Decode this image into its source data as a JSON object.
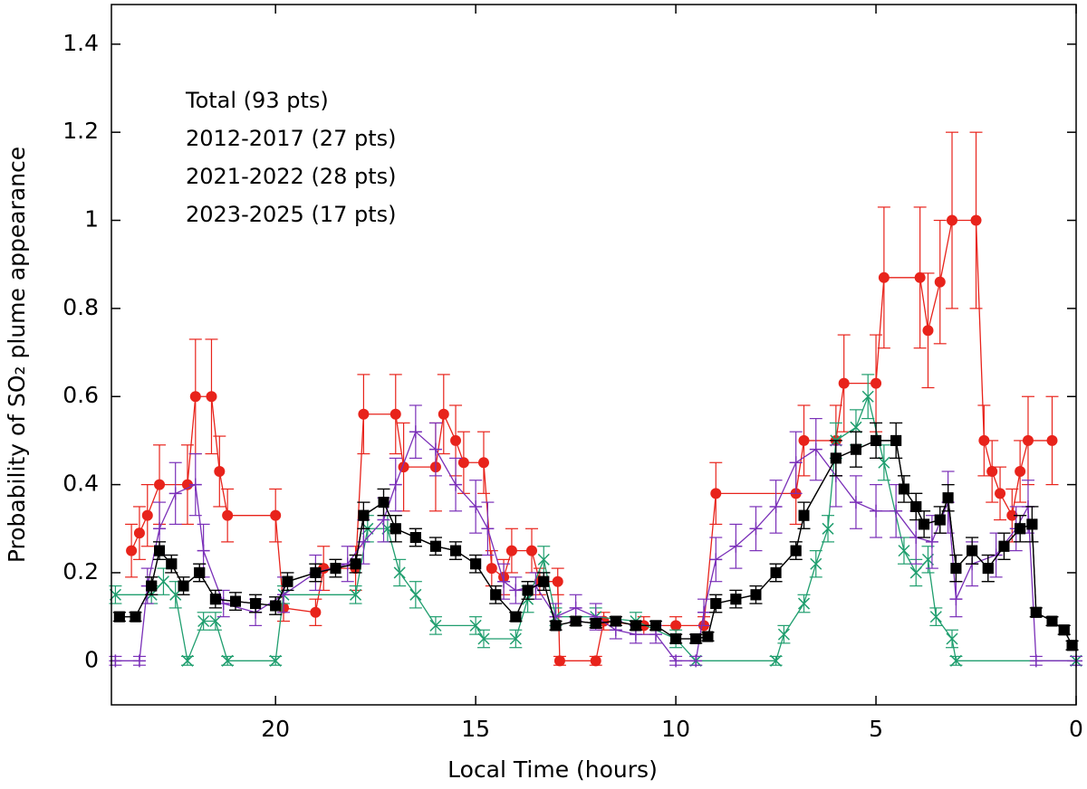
{
  "chart_data": {
    "type": "line",
    "xlabel": "Local Time (hours)",
    "ylabel": "Probability of SO₂ plume appearance",
    "xlim": [
      24.1,
      0
    ],
    "xticks": [
      20,
      15,
      10,
      5,
      0
    ],
    "ylim": [
      -0.1,
      1.49
    ],
    "yticks": [
      0,
      0.2,
      0.4,
      0.6,
      0.8,
      1,
      1.2,
      1.4
    ],
    "legend": "upper left",
    "series": [
      {
        "name": "Total (93 pts)",
        "color": "#000000",
        "marker": "square",
        "x": [
          23.9,
          23.5,
          23.1,
          22.9,
          22.6,
          22.3,
          21.9,
          21.5,
          21,
          20.5,
          20,
          19.7,
          19,
          18.5,
          18,
          17.8,
          17.3,
          17,
          16.5,
          16,
          15.5,
          15,
          14.5,
          14,
          13.7,
          13.3,
          13,
          12.5,
          12,
          11.5,
          11,
          10.5,
          10,
          9.5,
          9.2,
          9,
          8.5,
          8,
          7.5,
          7,
          6.8,
          6,
          5.5,
          5,
          4.5,
          4.3,
          4,
          3.8,
          3.4,
          3.2,
          3,
          2.6,
          2.2,
          1.8,
          1.4,
          1.1,
          1,
          0.6,
          0.3,
          0.1
        ],
        "values": [
          0.1,
          0.1,
          0.17,
          0.25,
          0.22,
          0.17,
          0.2,
          0.14,
          0.135,
          0.13,
          0.125,
          0.18,
          0.2,
          0.21,
          0.22,
          0.33,
          0.36,
          0.3,
          0.28,
          0.26,
          0.25,
          0.22,
          0.15,
          0.1,
          0.16,
          0.18,
          0.08,
          0.09,
          0.085,
          0.09,
          0.08,
          0.08,
          0.05,
          0.05,
          0.055,
          0.13,
          0.14,
          0.15,
          0.2,
          0.25,
          0.33,
          0.46,
          0.48,
          0.5,
          0.5,
          0.39,
          0.35,
          0.31,
          0.32,
          0.37,
          0.21,
          0.25,
          0.21,
          0.26,
          0.3,
          0.31,
          0.11,
          0.09,
          0.07,
          0.035
        ],
        "errors": [
          0.01,
          0.01,
          0.02,
          0.02,
          0.02,
          0.02,
          0.02,
          0.02,
          0.02,
          0.02,
          0.02,
          0.02,
          0.02,
          0.02,
          0.02,
          0.03,
          0.03,
          0.03,
          0.02,
          0.02,
          0.02,
          0.02,
          0.02,
          0.01,
          0.02,
          0.02,
          0.01,
          0.01,
          0.01,
          0.01,
          0.01,
          0.01,
          0.01,
          0.01,
          0.01,
          0.02,
          0.02,
          0.02,
          0.02,
          0.02,
          0.03,
          0.04,
          0.04,
          0.04,
          0.04,
          0.03,
          0.03,
          0.03,
          0.03,
          0.03,
          0.03,
          0.03,
          0.03,
          0.03,
          0.03,
          0.04,
          0.01,
          0.01,
          0.01,
          0.01
        ]
      },
      {
        "name": "2012-2017 (27 pts)",
        "color": "#7a2fb8",
        "marker": "plus",
        "x": [
          24,
          23.4,
          23.2,
          22.9,
          22.5,
          22,
          21.8,
          21.3,
          20.5,
          19.8,
          19,
          18.2,
          17.8,
          17.3,
          17,
          16.5,
          16,
          15.5,
          15,
          14.7,
          14.3,
          14,
          13.5,
          13,
          12.5,
          12,
          11.5,
          11,
          10.5,
          10,
          9.5,
          9.3,
          9,
          8.5,
          8,
          7.5,
          7,
          6.5,
          6,
          5.5,
          5,
          4.5,
          4,
          3.6,
          3.2,
          3,
          2.6,
          2,
          1.5,
          1.2,
          1,
          0
        ],
        "values": [
          0,
          0,
          0.17,
          0.3,
          0.38,
          0.4,
          0.25,
          0.13,
          0.11,
          0.15,
          0.2,
          0.22,
          0.27,
          0.32,
          0.4,
          0.52,
          0.48,
          0.4,
          0.35,
          0.3,
          0.18,
          0.16,
          0.17,
          0.1,
          0.12,
          0.1,
          0.07,
          0.06,
          0.06,
          0,
          0,
          0.11,
          0.23,
          0.26,
          0.3,
          0.35,
          0.45,
          0.48,
          0.42,
          0.36,
          0.34,
          0.34,
          0.28,
          0.27,
          0.36,
          0.14,
          0.22,
          0.24,
          0.3,
          0.35,
          0,
          0
        ],
        "errors": [
          0.01,
          0.01,
          0.04,
          0.06,
          0.07,
          0.07,
          0.06,
          0.03,
          0.03,
          0.04,
          0.04,
          0.04,
          0.05,
          0.05,
          0.06,
          0.06,
          0.06,
          0.06,
          0.06,
          0.06,
          0.04,
          0.03,
          0.03,
          0.03,
          0.03,
          0.03,
          0.02,
          0.02,
          0.02,
          0.01,
          0.01,
          0.03,
          0.05,
          0.05,
          0.05,
          0.06,
          0.07,
          0.07,
          0.07,
          0.06,
          0.06,
          0.06,
          0.06,
          0.06,
          0.07,
          0.04,
          0.05,
          0.05,
          0.05,
          0.06,
          0.01,
          0.01
        ]
      },
      {
        "name": "2021-2022 (28 pts)",
        "color": "#1f9e6e",
        "marker": "cross",
        "x": [
          24,
          23.1,
          22.8,
          22.5,
          22.2,
          21.8,
          21.5,
          21.2,
          20,
          19.8,
          18,
          17.7,
          17.2,
          16.9,
          16.5,
          16,
          15,
          14.8,
          14,
          13.7,
          13.3,
          13,
          12,
          11,
          10,
          9.5,
          7.5,
          7.3,
          6.8,
          6.5,
          6.2,
          6,
          5.5,
          5.2,
          4.8,
          4.3,
          4,
          3.7,
          3.5,
          3.1,
          3,
          0
        ],
        "values": [
          0.15,
          0.15,
          0.18,
          0.15,
          0,
          0.09,
          0.09,
          0,
          0,
          0.15,
          0.15,
          0.3,
          0.3,
          0.2,
          0.15,
          0.08,
          0.08,
          0.05,
          0.05,
          0.14,
          0.23,
          0.1,
          0.1,
          0.09,
          0.05,
          0,
          0,
          0.06,
          0.13,
          0.22,
          0.3,
          0.5,
          0.53,
          0.6,
          0.45,
          0.25,
          0.2,
          0.23,
          0.1,
          0.05,
          0,
          0
        ],
        "errors": [
          0.02,
          0.02,
          0.03,
          0.03,
          0.01,
          0.02,
          0.02,
          0.01,
          0.01,
          0.02,
          0.02,
          0.03,
          0.03,
          0.03,
          0.03,
          0.02,
          0.02,
          0.02,
          0.02,
          0.03,
          0.03,
          0.02,
          0.02,
          0.02,
          0.02,
          0.01,
          0.01,
          0.02,
          0.02,
          0.03,
          0.03,
          0.04,
          0.04,
          0.05,
          0.04,
          0.03,
          0.03,
          0.03,
          0.02,
          0.02,
          0.01,
          0.01
        ]
      },
      {
        "name": "2023-2025 (17 pts)",
        "color": "#e8231b",
        "marker": "circle",
        "x": [
          23.6,
          23.4,
          23.2,
          22.9,
          22.2,
          22,
          21.6,
          21.4,
          21.2,
          20,
          19.8,
          19,
          18.8,
          18,
          17.8,
          17,
          16.8,
          16,
          15.8,
          15.5,
          15.3,
          14.8,
          14.6,
          14.3,
          14.1,
          13.6,
          13.4,
          12.95,
          12.9,
          12,
          11.8,
          10.8,
          10,
          9.3,
          9,
          7,
          6.8,
          6,
          5.8,
          5,
          4.8,
          3.9,
          3.7,
          3.4,
          3.1,
          2.5,
          2.3,
          2.1,
          1.9,
          1.6,
          1.4,
          1.2,
          0.6
        ],
        "values": [
          0.25,
          0.29,
          0.33,
          0.4,
          0.4,
          0.6,
          0.6,
          0.43,
          0.33,
          0.33,
          0.12,
          0.11,
          0.21,
          0.21,
          0.56,
          0.56,
          0.44,
          0.44,
          0.56,
          0.5,
          0.45,
          0.45,
          0.21,
          0.19,
          0.25,
          0.25,
          0.18,
          0.18,
          0,
          0,
          0.09,
          0.08,
          0.08,
          0.08,
          0.38,
          0.38,
          0.5,
          0.5,
          0.63,
          0.63,
          0.87,
          0.87,
          0.75,
          0.86,
          1,
          1,
          0.5,
          0.43,
          0.38,
          0.33,
          0.43,
          0.5,
          0.5
        ],
        "errors": [
          0.06,
          0.06,
          0.07,
          0.09,
          0.09,
          0.13,
          0.13,
          0.08,
          0.06,
          0.06,
          0.03,
          0.03,
          0.05,
          0.05,
          0.09,
          0.09,
          0.1,
          0.1,
          0.09,
          0.08,
          0.07,
          0.07,
          0.04,
          0.04,
          0.05,
          0.05,
          0.03,
          0.03,
          0.01,
          0.01,
          0.02,
          0.02,
          0.02,
          0.02,
          0.07,
          0.07,
          0.08,
          0.08,
          0.11,
          0.11,
          0.16,
          0.16,
          0.13,
          0.14,
          0.2,
          0.2,
          0.08,
          0.07,
          0.06,
          0.06,
          0.07,
          0.1,
          0.1
        ]
      }
    ]
  }
}
